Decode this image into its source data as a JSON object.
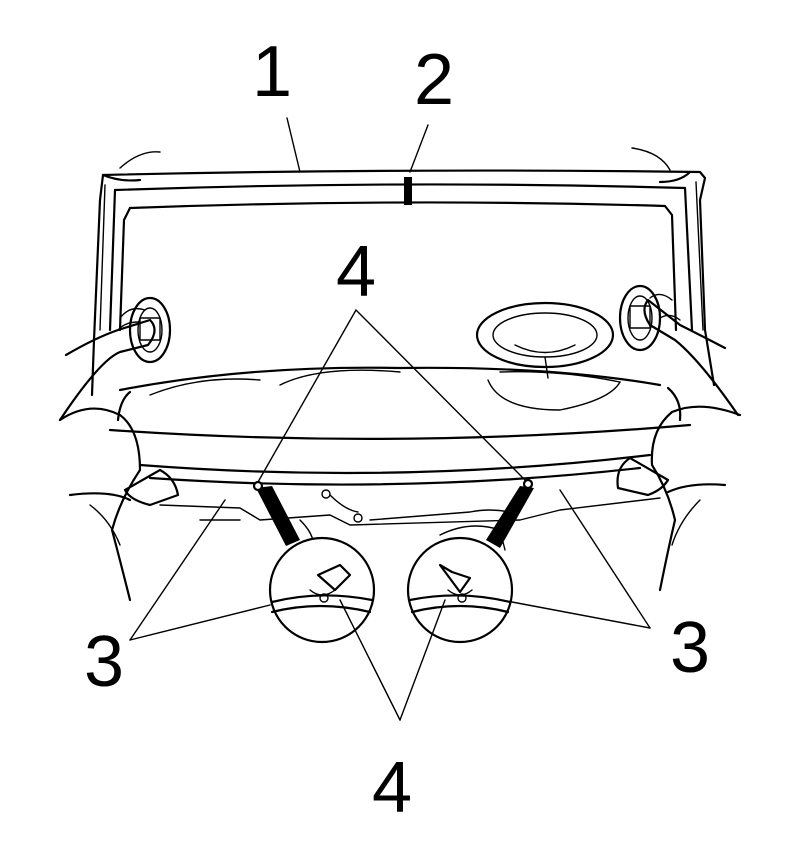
{
  "callouts": {
    "c1": "1",
    "c2": "2",
    "c3_left": "3",
    "c3_right": "3",
    "c4_top": "4",
    "c4_bottom": "4"
  },
  "colors": {
    "ink": "#000000",
    "paper": "#ffffff"
  }
}
